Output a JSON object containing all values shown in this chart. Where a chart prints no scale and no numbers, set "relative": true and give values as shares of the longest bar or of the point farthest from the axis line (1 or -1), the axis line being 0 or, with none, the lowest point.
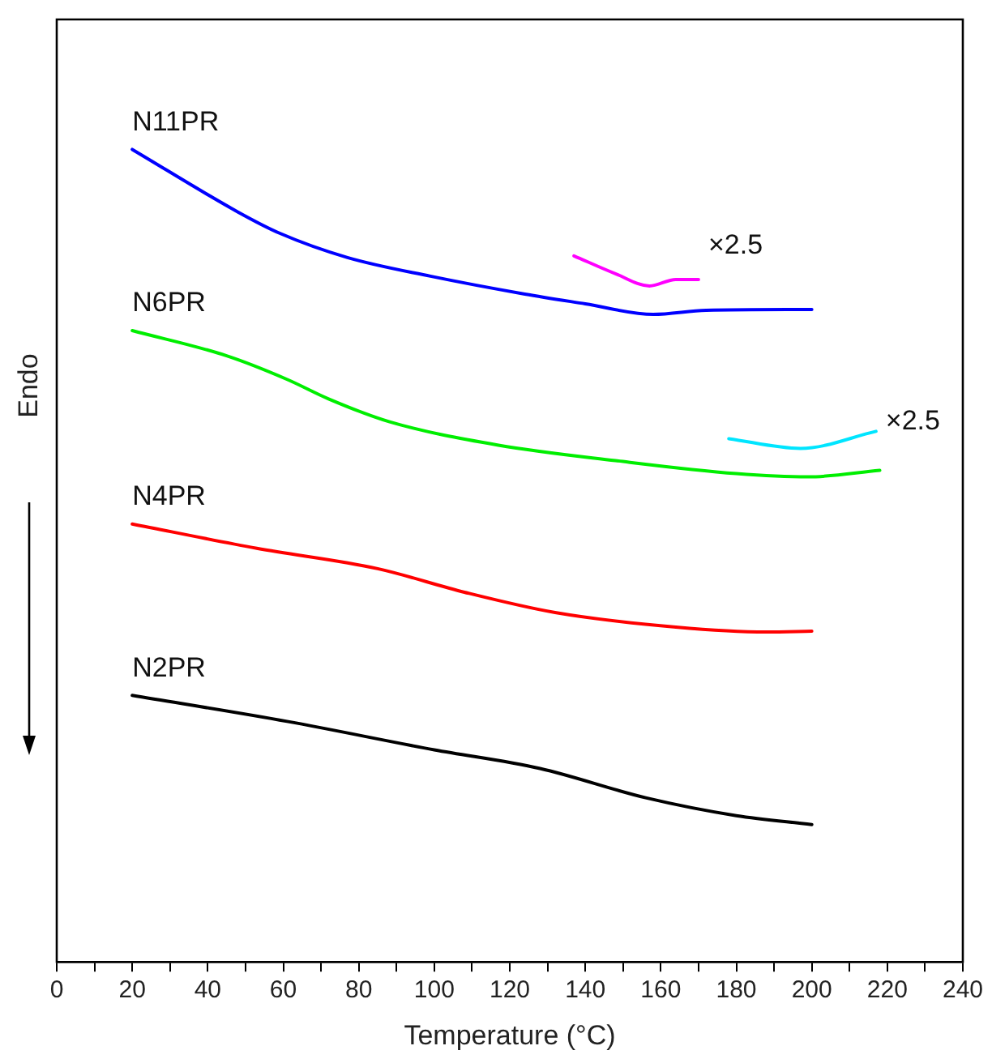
{
  "chart_data": {
    "type": "line",
    "xlabel": "Temperature (°C)",
    "ylabel": "Endo",
    "relative": true,
    "legend": false,
    "grid": false,
    "marker": "none",
    "line_style": "solid",
    "xlim": [
      0,
      240
    ],
    "xticks": [
      0,
      {
        "value": 10,
        "label": null
      },
      20,
      {
        "value": 30,
        "label": null
      },
      40,
      {
        "value": 50,
        "label": null
      },
      60,
      {
        "value": 70,
        "label": null
      },
      80,
      {
        "value": 90,
        "label": null
      },
      100,
      {
        "value": 110,
        "label": null
      },
      120,
      {
        "value": 130,
        "label": null
      },
      140,
      {
        "value": 150,
        "label": null
      },
      160,
      {
        "value": 170,
        "label": null
      },
      180,
      {
        "value": 190,
        "label": null
      },
      200,
      {
        "value": 210,
        "label": null
      },
      220,
      {
        "value": 230,
        "label": null
      },
      240
    ],
    "series": [
      {
        "name": "N11PR",
        "color": "#0000ff",
        "x": [
          20,
          48,
          59,
          77,
          99,
          124,
          140,
          158,
          172,
          200
        ],
        "values": [
          1.0,
          0.923,
          0.897,
          0.867,
          0.844,
          0.822,
          0.81,
          0.797,
          0.802,
          0.803
        ]
      },
      {
        "color": "#ff00ff",
        "x": [
          137,
          148,
          157,
          164,
          170
        ],
        "values": [
          0.869,
          0.847,
          0.832,
          0.84,
          0.84
        ]
      },
      {
        "name": "N6PR",
        "color": "#00ee00",
        "x": [
          20,
          45,
          61,
          72,
          88,
          117,
          148,
          180,
          199,
          218
        ],
        "values": [
          0.777,
          0.746,
          0.717,
          0.693,
          0.665,
          0.636,
          0.617,
          0.601,
          0.597,
          0.605
        ]
      },
      {
        "color": "#00e5ff",
        "x": [
          178,
          197,
          217
        ],
        "values": [
          0.644,
          0.632,
          0.653
        ]
      },
      {
        "name": "N4PR",
        "color": "#ff0000",
        "x": [
          20,
          53,
          85,
          108,
          132,
          164,
          188,
          200
        ],
        "values": [
          0.539,
          0.509,
          0.484,
          0.455,
          0.43,
          0.412,
          0.406,
          0.407
        ]
      },
      {
        "name": "N2PR",
        "color": "#000000",
        "x": [
          20,
          61,
          100,
          128,
          156,
          180,
          200
        ],
        "values": [
          0.328,
          0.296,
          0.261,
          0.238,
          0.202,
          0.18,
          0.169
        ]
      }
    ],
    "annotations": [
      "×2.5",
      "×2.5"
    ]
  }
}
